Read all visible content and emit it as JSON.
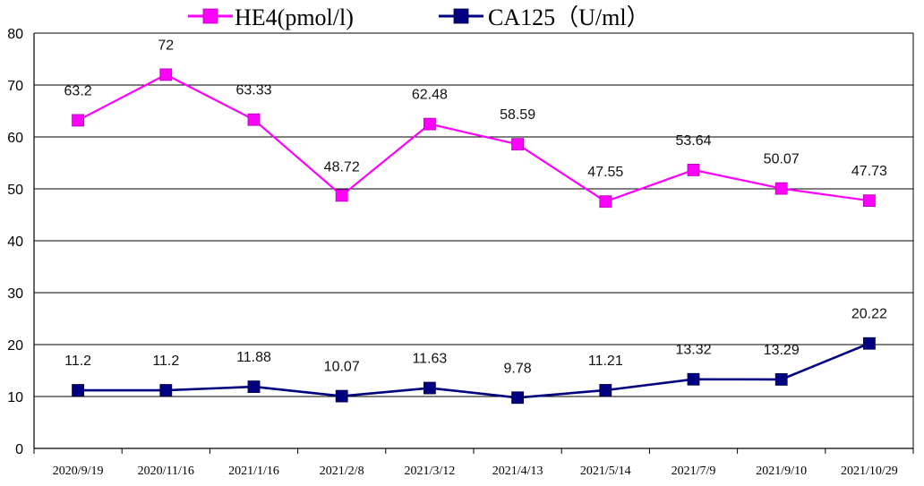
{
  "chart_data": {
    "type": "line",
    "title": "",
    "xlabel": "",
    "ylabel": "",
    "ylim": [
      0,
      80
    ],
    "yticks": [
      0,
      10,
      20,
      30,
      40,
      50,
      60,
      70,
      80
    ],
    "grid": true,
    "legend_position": "top",
    "categories": [
      "2020/9/19",
      "2020/11/16",
      "2021/1/16",
      "2021/2/8",
      "2021/3/12",
      "2021/4/13",
      "2021/5/14",
      "2021/7/9",
      "2021/9/10",
      "2021/10/29"
    ],
    "series": [
      {
        "name": "HE4(pmol/l)",
        "color": "#ff00ff",
        "marker": "square",
        "values": [
          63.2,
          72,
          63.33,
          48.72,
          62.48,
          58.59,
          47.55,
          53.64,
          50.07,
          47.73
        ],
        "labels": [
          "63.2",
          "72",
          "63.33",
          "48.72",
          "62.48",
          "58.59",
          "47.55",
          "53.64",
          "50.07",
          "47.73"
        ]
      },
      {
        "name": "CA125（U/ml）",
        "color": "#000080",
        "marker": "square",
        "values": [
          11.2,
          11.2,
          11.88,
          10.07,
          11.63,
          9.78,
          11.21,
          13.32,
          13.29,
          20.22
        ],
        "labels": [
          "11.2",
          "11.2",
          "11.88",
          "10.07",
          "11.63",
          "9.78",
          "11.21",
          "13.32",
          "13.29",
          "20.22"
        ]
      }
    ]
  }
}
